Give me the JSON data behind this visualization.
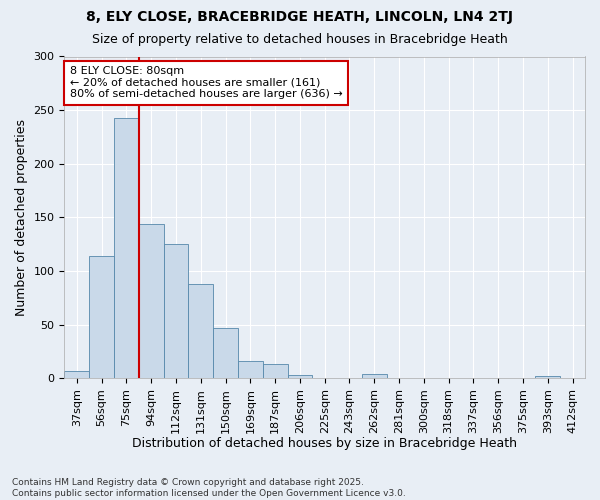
{
  "title1": "8, ELY CLOSE, BRACEBRIDGE HEATH, LINCOLN, LN4 2TJ",
  "title2": "Size of property relative to detached houses in Bracebridge Heath",
  "xlabel": "Distribution of detached houses by size in Bracebridge Heath",
  "ylabel": "Number of detached properties",
  "categories": [
    "37sqm",
    "56sqm",
    "75sqm",
    "94sqm",
    "112sqm",
    "131sqm",
    "150sqm",
    "169sqm",
    "187sqm",
    "206sqm",
    "225sqm",
    "243sqm",
    "262sqm",
    "281sqm",
    "300sqm",
    "318sqm",
    "337sqm",
    "356sqm",
    "375sqm",
    "393sqm",
    "412sqm"
  ],
  "values": [
    7,
    114,
    243,
    144,
    125,
    88,
    47,
    16,
    13,
    3,
    0,
    0,
    4,
    0,
    0,
    0,
    0,
    0,
    0,
    2,
    0
  ],
  "bar_color": "#c9d9e9",
  "bar_edge_color": "#5588aa",
  "bg_color": "#e8eef5",
  "grid_color": "#ffffff",
  "vline_color": "#cc0000",
  "annotation_text": "8 ELY CLOSE: 80sqm\n← 20% of detached houses are smaller (161)\n80% of semi-detached houses are larger (636) →",
  "annotation_box_facecolor": "#ffffff",
  "annotation_box_edgecolor": "#cc0000",
  "footer": "Contains HM Land Registry data © Crown copyright and database right 2025.\nContains public sector information licensed under the Open Government Licence v3.0.",
  "ylim": [
    0,
    300
  ],
  "yticks": [
    0,
    50,
    100,
    150,
    200,
    250,
    300
  ],
  "title1_fontsize": 10,
  "title2_fontsize": 9,
  "ylabel_fontsize": 9,
  "xlabel_fontsize": 9,
  "tick_fontsize": 8,
  "footer_fontsize": 6.5,
  "annotation_fontsize": 8
}
